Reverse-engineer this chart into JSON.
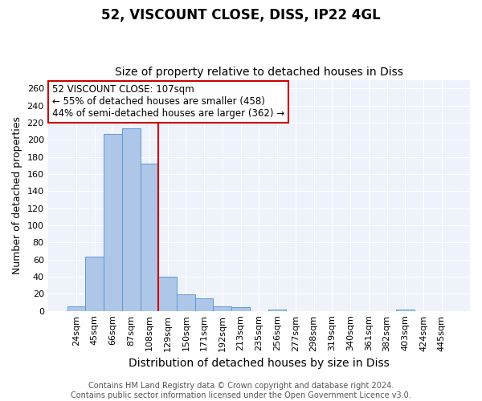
{
  "title": "52, VISCOUNT CLOSE, DISS, IP22 4GL",
  "subtitle": "Size of property relative to detached houses in Diss",
  "xlabel": "Distribution of detached houses by size in Diss",
  "ylabel": "Number of detached properties",
  "categories": [
    "24sqm",
    "45sqm",
    "66sqm",
    "87sqm",
    "108sqm",
    "129sqm",
    "150sqm",
    "171sqm",
    "192sqm",
    "213sqm",
    "235sqm",
    "256sqm",
    "277sqm",
    "298sqm",
    "319sqm",
    "340sqm",
    "361sqm",
    "382sqm",
    "403sqm",
    "424sqm",
    "445sqm"
  ],
  "values": [
    5,
    63,
    207,
    213,
    172,
    40,
    19,
    15,
    5,
    4,
    0,
    2,
    0,
    0,
    0,
    0,
    0,
    0,
    2,
    0,
    0
  ],
  "bar_color": "#aec6e8",
  "bar_edge_color": "#5b9bd5",
  "vline_index": 4,
  "vline_color": "#cc0000",
  "annotation_line1": "52 VISCOUNT CLOSE: 107sqm",
  "annotation_line2": "← 55% of detached houses are smaller (458)",
  "annotation_line3": "44% of semi-detached houses are larger (362) →",
  "annotation_box_color": "#ffffff",
  "annotation_box_edge_color": "#cc0000",
  "ylim": [
    0,
    270
  ],
  "yticks": [
    0,
    20,
    40,
    60,
    80,
    100,
    120,
    140,
    160,
    180,
    200,
    220,
    240,
    260
  ],
  "bg_color": "#eef2fb",
  "footnote": "Contains HM Land Registry data © Crown copyright and database right 2024.\nContains public sector information licensed under the Open Government Licence v3.0.",
  "title_fontsize": 12,
  "subtitle_fontsize": 10,
  "xlabel_fontsize": 10,
  "ylabel_fontsize": 9,
  "annotation_fontsize": 8.5,
  "tick_fontsize": 8,
  "footnote_fontsize": 7
}
